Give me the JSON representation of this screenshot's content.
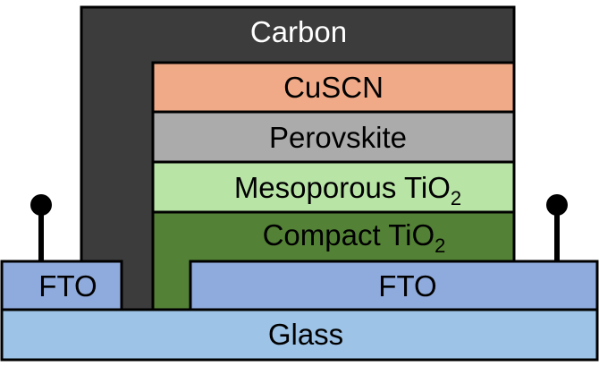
{
  "colors": {
    "carbon": "#3c3c3c",
    "cuscn": "#f0aa87",
    "perovskite": "#ababab",
    "mesoporous": "#b8e4a6",
    "compact": "#538135",
    "fto": "#8faadc",
    "glass": "#9dc3e6",
    "outline": "#000000"
  },
  "layers": {
    "carbon": {
      "label": "Carbon"
    },
    "cuscn": {
      "label": "CuSCN"
    },
    "perovskite": {
      "label": "Perovskite"
    },
    "mesoporous": {
      "label": "Mesoporous TiO",
      "subscript": "2"
    },
    "compact": {
      "label": "Compact TiO",
      "subscript": "2"
    },
    "fto_left": {
      "label": "FTO"
    },
    "fto_right": {
      "label": "FTO"
    },
    "glass": {
      "label": "Glass"
    }
  },
  "contacts": [
    {
      "name": "left-contact"
    },
    {
      "name": "right-contact"
    }
  ]
}
